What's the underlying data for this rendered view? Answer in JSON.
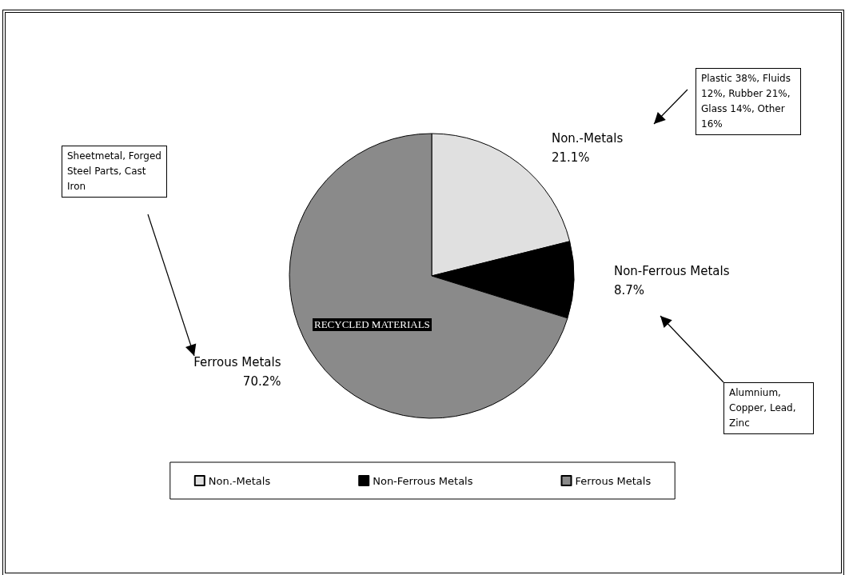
{
  "chart_data": {
    "type": "pie",
    "categories": [
      "Non.-Metals",
      "Non-Ferrous Metals",
      "Ferrous Metals"
    ],
    "values": [
      21.1,
      8.7,
      70.2
    ],
    "colors": [
      "#e0e0e0",
      "#000000",
      "#8a8a8a"
    ],
    "legend": "bottom",
    "value_labels": [
      "21.1%",
      "8.7%",
      "70.2%"
    ],
    "annotations": [
      "Plastic 38%, Fluids 12%, Rubber 21%, Glass 14%, Other 16%",
      "Sheetmetal, Forged Steel Parts, Cast Iron",
      "Alumnium, Copper, Lead, Zinc",
      "RECYCLED MATERIALS"
    ]
  }
}
